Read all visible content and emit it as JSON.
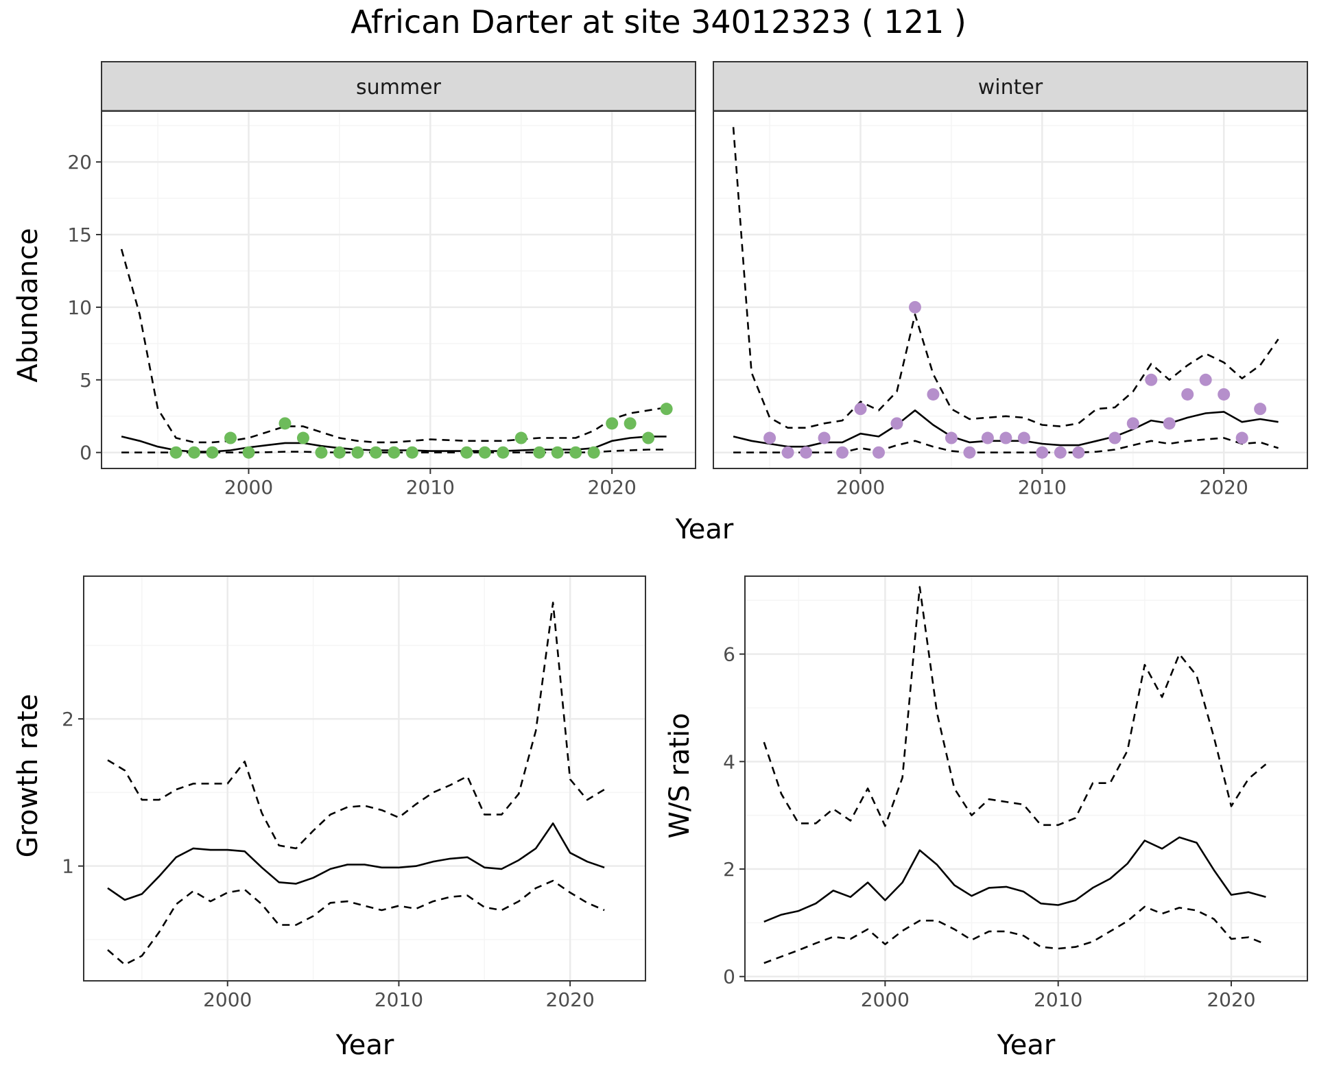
{
  "title": "African Darter at site 34012323 ( 121 )",
  "colors": {
    "summer_points": "#6dbb5a",
    "winter_points": "#b58fcb",
    "line": "#000000",
    "grid_major": "#ebebeb",
    "grid_minor": "#f5f5f5",
    "strip_bg": "#d9d9d9",
    "panel_border": "#333333"
  },
  "abundance_axis": {
    "xlabel": "Year",
    "ylabel": "Abundance"
  },
  "growth_axis": {
    "xlabel": "Year",
    "ylabel": "Growth rate"
  },
  "ws_axis": {
    "xlabel": "Year",
    "ylabel": "W/S ratio"
  },
  "facets": {
    "summer": "summer",
    "winter": "winter"
  },
  "chart_data": [
    {
      "id": "abundance_summer",
      "type": "line",
      "facet": "summer",
      "xlim": [
        1991.9,
        2024.6
      ],
      "ylim": [
        -1.1,
        23.5
      ],
      "x_ticks": [
        2000,
        2010,
        2020
      ],
      "y_ticks": [
        0,
        5,
        10,
        15,
        20
      ],
      "grid": true,
      "series": [
        {
          "role": "mean",
          "style": "solid",
          "x": [
            1993,
            1994,
            1995,
            1996,
            1997,
            1998,
            1999,
            2000,
            2001,
            2002,
            2003,
            2004,
            2005,
            2006,
            2007,
            2008,
            2009,
            2010,
            2011,
            2012,
            2013,
            2014,
            2015,
            2016,
            2017,
            2018,
            2019,
            2020,
            2021,
            2022,
            2023
          ],
          "y": [
            1.1,
            0.8,
            0.4,
            0.15,
            0.05,
            0.05,
            0.15,
            0.35,
            0.5,
            0.65,
            0.65,
            0.45,
            0.3,
            0.2,
            0.15,
            0.15,
            0.15,
            0.1,
            0.1,
            0.1,
            0.1,
            0.1,
            0.15,
            0.2,
            0.2,
            0.2,
            0.3,
            0.8,
            1.0,
            1.1,
            1.1
          ]
        },
        {
          "role": "upper",
          "style": "dashed",
          "x": [
            1993,
            1994,
            1995,
            1996,
            1997,
            1998,
            1999,
            2000,
            2001,
            2002,
            2003,
            2004,
            2005,
            2006,
            2007,
            2008,
            2009,
            2010,
            2011,
            2012,
            2013,
            2014,
            2015,
            2016,
            2017,
            2018,
            2019,
            2020,
            2021,
            2022,
            2023
          ],
          "y": [
            14.0,
            9.5,
            3.0,
            1.0,
            0.7,
            0.7,
            0.8,
            1.0,
            1.4,
            1.8,
            1.8,
            1.4,
            1.0,
            0.8,
            0.7,
            0.7,
            0.8,
            0.9,
            0.85,
            0.8,
            0.8,
            0.8,
            0.9,
            1.0,
            1.0,
            1.0,
            1.5,
            2.3,
            2.7,
            2.9,
            3.1
          ]
        },
        {
          "role": "lower",
          "style": "dashed",
          "x": [
            1993,
            1994,
            1995,
            1996,
            1997,
            1998,
            1999,
            2000,
            2001,
            2002,
            2003,
            2004,
            2005,
            2006,
            2007,
            2008,
            2009,
            2010,
            2011,
            2012,
            2013,
            2014,
            2015,
            2016,
            2017,
            2018,
            2019,
            2020,
            2021,
            2022,
            2023
          ],
          "y": [
            0,
            0,
            0,
            0,
            0,
            0,
            0,
            0,
            0.02,
            0.05,
            0.05,
            0.02,
            0,
            0,
            0,
            0,
            0,
            0,
            0,
            0,
            0,
            0,
            0,
            0,
            0,
            0,
            0.02,
            0.1,
            0.15,
            0.2,
            0.2
          ]
        },
        {
          "role": "observed",
          "style": "points",
          "x": [
            1996,
            1997,
            1998,
            1999,
            2000,
            2002,
            2003,
            2004,
            2005,
            2006,
            2007,
            2008,
            2009,
            2012,
            2013,
            2014,
            2015,
            2016,
            2017,
            2018,
            2019,
            2020,
            2021,
            2022,
            2023
          ],
          "y": [
            0,
            0,
            0,
            1,
            0,
            2,
            1,
            0,
            0,
            0,
            0,
            0,
            0,
            0,
            0,
            0,
            1,
            0,
            0,
            0,
            0,
            2,
            2,
            1,
            3
          ]
        }
      ]
    },
    {
      "id": "abundance_winter",
      "type": "line",
      "facet": "winter",
      "xlim": [
        1991.9,
        2024.6
      ],
      "ylim": [
        -1.1,
        23.5
      ],
      "x_ticks": [
        2000,
        2010,
        2020
      ],
      "y_ticks": [
        0,
        5,
        10,
        15,
        20
      ],
      "grid": true,
      "series": [
        {
          "role": "mean",
          "style": "solid",
          "x": [
            1993,
            1994,
            1995,
            1996,
            1997,
            1998,
            1999,
            2000,
            2001,
            2002,
            2003,
            2004,
            2005,
            2006,
            2007,
            2008,
            2009,
            2010,
            2011,
            2012,
            2013,
            2014,
            2015,
            2016,
            2017,
            2018,
            2019,
            2020,
            2021,
            2022,
            2023
          ],
          "y": [
            1.1,
            0.8,
            0.6,
            0.4,
            0.4,
            0.7,
            0.7,
            1.3,
            1.1,
            1.9,
            2.9,
            1.9,
            1.1,
            0.7,
            0.8,
            0.8,
            0.8,
            0.6,
            0.5,
            0.5,
            0.8,
            1.1,
            1.6,
            2.2,
            2.0,
            2.4,
            2.7,
            2.8,
            2.1,
            2.3,
            2.1
          ]
        },
        {
          "role": "upper",
          "style": "dashed",
          "x": [
            1993,
            1994,
            1995,
            1996,
            1997,
            1998,
            1999,
            2000,
            2001,
            2002,
            2003,
            2004,
            2005,
            2006,
            2007,
            2008,
            2009,
            2010,
            2011,
            2012,
            2013,
            2014,
            2015,
            2016,
            2017,
            2018,
            2019,
            2020,
            2021,
            2022,
            2023
          ],
          "y": [
            22.4,
            5.5,
            2.4,
            1.7,
            1.7,
            2.0,
            2.2,
            3.5,
            2.9,
            4.2,
            9.5,
            5.4,
            3.0,
            2.3,
            2.4,
            2.5,
            2.4,
            1.9,
            1.8,
            2.0,
            3.0,
            3.1,
            4.2,
            6.1,
            5.0,
            6.0,
            6.8,
            6.2,
            5.1,
            6.0,
            7.8
          ]
        },
        {
          "role": "lower",
          "style": "dashed",
          "x": [
            1993,
            1994,
            1995,
            1996,
            1997,
            1998,
            1999,
            2000,
            2001,
            2002,
            2003,
            2004,
            2005,
            2006,
            2007,
            2008,
            2009,
            2010,
            2011,
            2012,
            2013,
            2014,
            2015,
            2016,
            2017,
            2018,
            2019,
            2020,
            2021,
            2022,
            2023
          ],
          "y": [
            0,
            0,
            0,
            0,
            0,
            0,
            0,
            0.3,
            0.1,
            0.5,
            0.8,
            0.4,
            0.1,
            0,
            0,
            0,
            0,
            0,
            0,
            0,
            0.05,
            0.2,
            0.5,
            0.8,
            0.6,
            0.8,
            0.9,
            1.0,
            0.6,
            0.7,
            0.3
          ]
        },
        {
          "role": "observed",
          "style": "points",
          "x": [
            1995,
            1996,
            1997,
            1998,
            1999,
            2000,
            2001,
            2002,
            2003,
            2004,
            2005,
            2006,
            2007,
            2008,
            2009,
            2010,
            2011,
            2012,
            2014,
            2015,
            2016,
            2017,
            2018,
            2019,
            2020,
            2021,
            2022
          ],
          "y": [
            1,
            0,
            0,
            1,
            0,
            3,
            0,
            2,
            10,
            4,
            1,
            0,
            1,
            1,
            1,
            0,
            0,
            0,
            1,
            2,
            5,
            2,
            4,
            5,
            4,
            1,
            3
          ]
        }
      ]
    },
    {
      "id": "growth_rate",
      "type": "line",
      "xlim": [
        1991.6,
        2024.4
      ],
      "ylim": [
        0.22,
        2.97
      ],
      "x_ticks": [
        2000,
        2010,
        2020
      ],
      "y_ticks": [
        1,
        2
      ],
      "grid": true,
      "series": [
        {
          "role": "mean",
          "style": "solid",
          "x": [
            1993,
            1994,
            1995,
            1996,
            1997,
            1998,
            1999,
            2000,
            2001,
            2002,
            2003,
            2004,
            2005,
            2006,
            2007,
            2008,
            2009,
            2010,
            2011,
            2012,
            2013,
            2014,
            2015,
            2016,
            2017,
            2018,
            2019,
            2020,
            2021,
            2022
          ],
          "y": [
            0.85,
            0.77,
            0.81,
            0.93,
            1.06,
            1.12,
            1.11,
            1.11,
            1.1,
            0.99,
            0.89,
            0.88,
            0.92,
            0.98,
            1.01,
            1.01,
            0.99,
            0.99,
            1.0,
            1.03,
            1.05,
            1.06,
            0.99,
            0.98,
            1.04,
            1.12,
            1.29,
            1.09,
            1.03,
            0.99
          ]
        },
        {
          "role": "upper",
          "style": "dashed",
          "x": [
            1993,
            1994,
            1995,
            1996,
            1997,
            1998,
            1999,
            2000,
            2001,
            2002,
            2003,
            2004,
            2005,
            2006,
            2007,
            2008,
            2009,
            2010,
            2011,
            2012,
            2013,
            2014,
            2015,
            2016,
            2017,
            2018,
            2019,
            2020,
            2021,
            2022
          ],
          "y": [
            1.72,
            1.65,
            1.45,
            1.45,
            1.52,
            1.56,
            1.56,
            1.56,
            1.71,
            1.36,
            1.14,
            1.12,
            1.24,
            1.35,
            1.4,
            1.41,
            1.38,
            1.33,
            1.42,
            1.5,
            1.55,
            1.61,
            1.35,
            1.35,
            1.49,
            1.92,
            2.79,
            1.59,
            1.45,
            1.52
          ]
        },
        {
          "role": "lower",
          "style": "dashed",
          "x": [
            1993,
            1994,
            1995,
            1996,
            1997,
            1998,
            1999,
            2000,
            2001,
            2002,
            2003,
            2004,
            2005,
            2006,
            2007,
            2008,
            2009,
            2010,
            2011,
            2012,
            2013,
            2014,
            2015,
            2016,
            2017,
            2018,
            2019,
            2020,
            2021,
            2022
          ],
          "y": [
            0.43,
            0.33,
            0.39,
            0.55,
            0.74,
            0.83,
            0.76,
            0.82,
            0.84,
            0.74,
            0.6,
            0.6,
            0.66,
            0.75,
            0.76,
            0.73,
            0.7,
            0.73,
            0.71,
            0.76,
            0.79,
            0.8,
            0.72,
            0.7,
            0.76,
            0.85,
            0.9,
            0.82,
            0.75,
            0.7
          ]
        }
      ]
    },
    {
      "id": "ws_ratio",
      "type": "line",
      "xlim": [
        1991.9,
        2024.4
      ],
      "ylim": [
        -0.08,
        7.45
      ],
      "x_ticks": [
        2000,
        2010,
        2020
      ],
      "y_ticks": [
        0,
        2,
        4,
        6
      ],
      "grid": true,
      "series": [
        {
          "role": "mean",
          "style": "solid",
          "x": [
            1993,
            1994,
            1995,
            1996,
            1997,
            1998,
            1999,
            2000,
            2001,
            2002,
            2003,
            2004,
            2005,
            2006,
            2007,
            2008,
            2009,
            2010,
            2011,
            2012,
            2013,
            2014,
            2015,
            2016,
            2017,
            2018,
            2019,
            2020,
            2021,
            2022
          ],
          "y": [
            1.02,
            1.15,
            1.22,
            1.36,
            1.6,
            1.48,
            1.75,
            1.42,
            1.75,
            2.35,
            2.08,
            1.7,
            1.5,
            1.65,
            1.67,
            1.58,
            1.36,
            1.33,
            1.42,
            1.65,
            1.82,
            2.1,
            2.53,
            2.38,
            2.59,
            2.49,
            1.98,
            1.52,
            1.57,
            1.48
          ]
        },
        {
          "role": "upper",
          "style": "dashed",
          "x": [
            1993,
            1994,
            1995,
            1996,
            1997,
            1998,
            1999,
            2000,
            2001,
            2002,
            2003,
            2004,
            2005,
            2006,
            2007,
            2008,
            2009,
            2010,
            2011,
            2012,
            2013,
            2014,
            2015,
            2016,
            2017,
            2018,
            2019,
            2020,
            2021,
            2022
          ],
          "y": [
            4.36,
            3.4,
            2.85,
            2.85,
            3.12,
            2.9,
            3.5,
            2.8,
            3.7,
            7.25,
            4.9,
            3.5,
            3.0,
            3.3,
            3.25,
            3.2,
            2.82,
            2.82,
            2.95,
            3.6,
            3.6,
            4.2,
            5.8,
            5.2,
            6.0,
            5.6,
            4.45,
            3.17,
            3.68,
            3.95
          ]
        },
        {
          "role": "lower",
          "style": "dashed",
          "x": [
            1993,
            1994,
            1995,
            1996,
            1997,
            1998,
            1999,
            2000,
            2001,
            2002,
            2003,
            2004,
            2005,
            2006,
            2007,
            2008,
            2009,
            2010,
            2011,
            2012,
            2013,
            2014,
            2015,
            2016,
            2017,
            2018,
            2019,
            2020,
            2021,
            2022
          ],
          "y": [
            0.25,
            0.37,
            0.49,
            0.62,
            0.74,
            0.7,
            0.88,
            0.6,
            0.85,
            1.04,
            1.04,
            0.88,
            0.68,
            0.84,
            0.84,
            0.76,
            0.55,
            0.52,
            0.55,
            0.65,
            0.84,
            1.03,
            1.3,
            1.17,
            1.28,
            1.23,
            1.07,
            0.7,
            0.73,
            0.6
          ]
        }
      ]
    }
  ]
}
